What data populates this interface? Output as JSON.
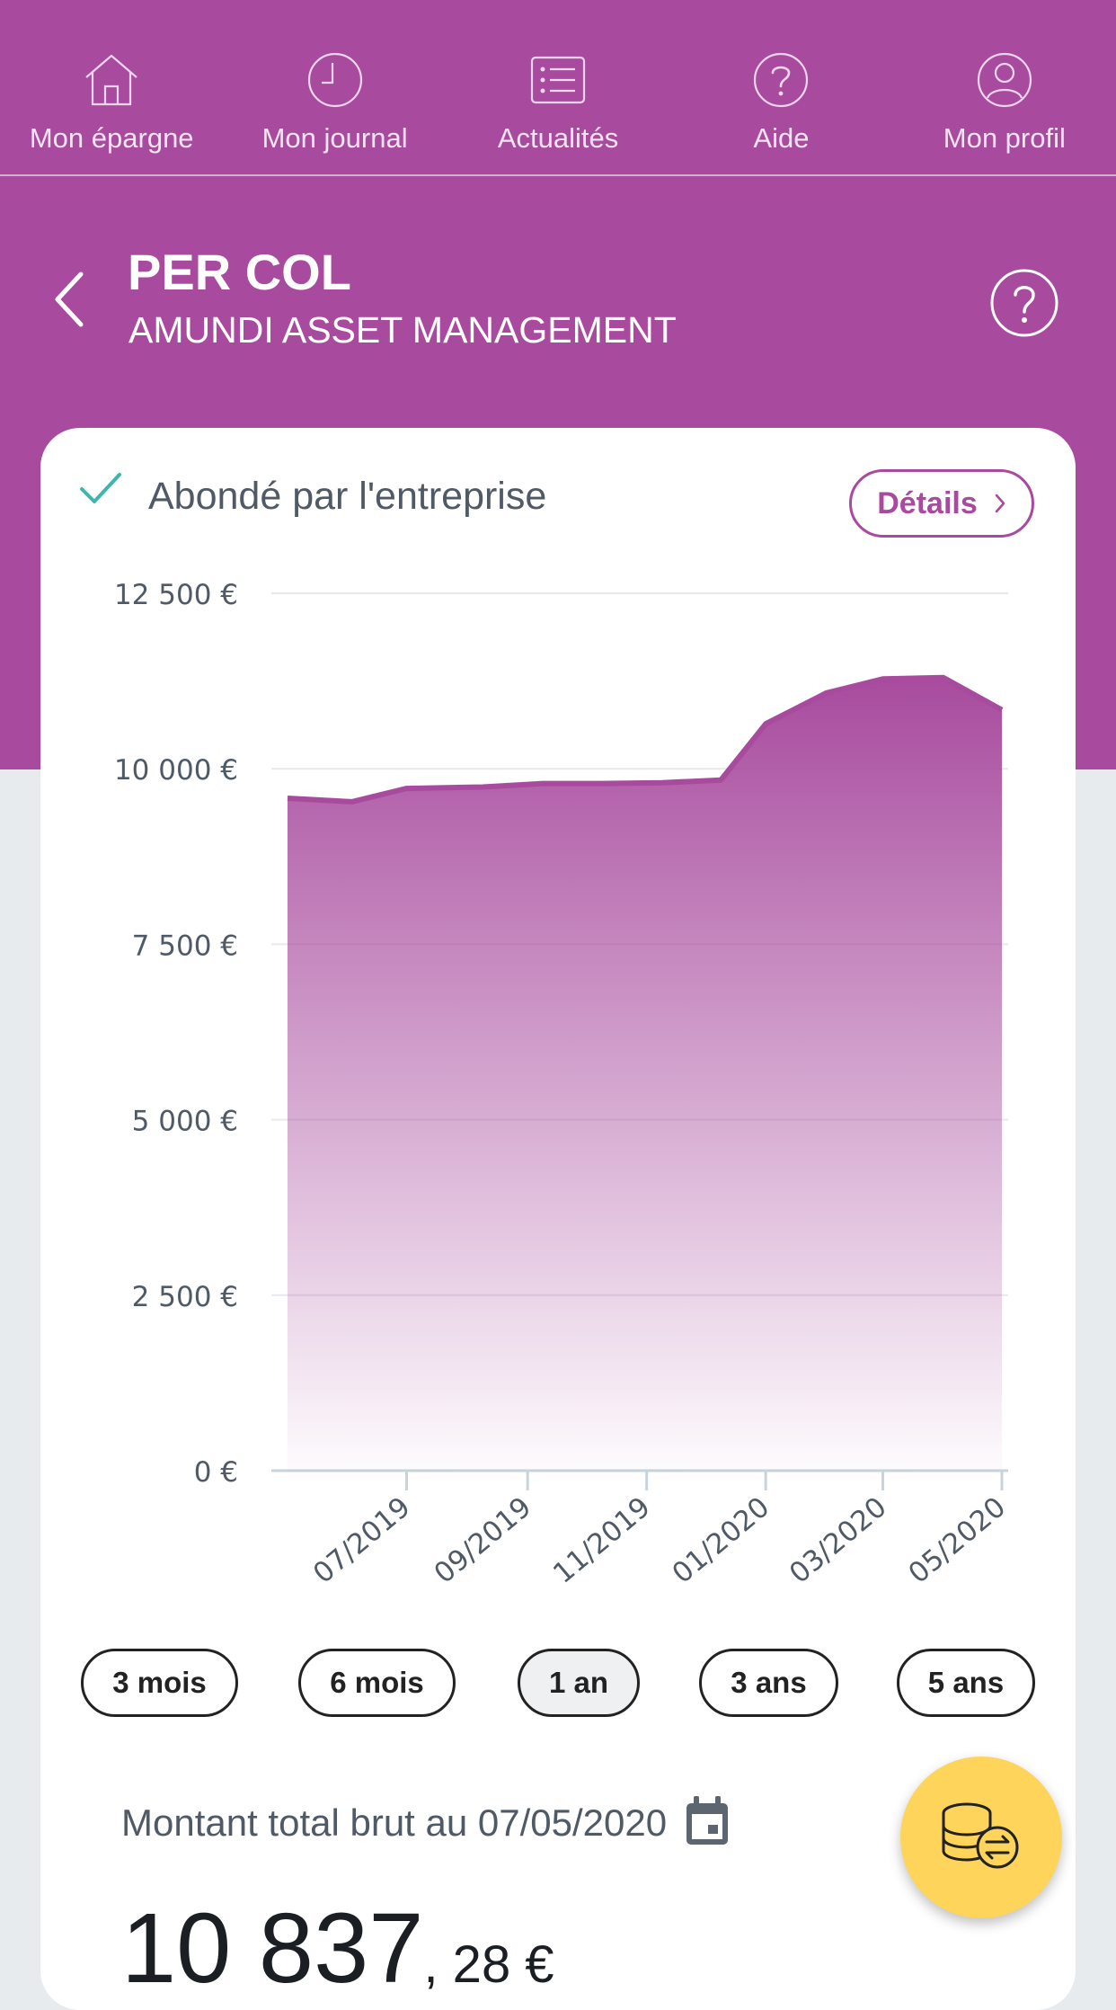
{
  "nav": {
    "items": [
      {
        "label": "Mon épargne",
        "icon": "home-icon"
      },
      {
        "label": "Mon journal",
        "icon": "clock-icon"
      },
      {
        "label": "Actualités",
        "icon": "news-list-icon"
      },
      {
        "label": "Aide",
        "icon": "help-icon"
      },
      {
        "label": "Mon profil",
        "icon": "user-icon"
      }
    ]
  },
  "header": {
    "title": "PER COL",
    "subtitle": "AMUNDI ASSET MANAGEMENT"
  },
  "card": {
    "abonde_label": "Abondé par l'entreprise",
    "details_label": "Détails"
  },
  "chart_data": {
    "type": "area",
    "title": "",
    "xlabel": "",
    "ylabel": "",
    "ylim": [
      0,
      12500
    ],
    "y_ticks": [
      "0 €",
      "2 500 €",
      "5 000 €",
      "7 500 €",
      "10 000 €",
      "12 500 €"
    ],
    "x_ticks": [
      "07/2019",
      "09/2019",
      "11/2019",
      "01/2020",
      "03/2020",
      "05/2020"
    ],
    "series": [
      {
        "values": [
          {
            "x": "2019-05-07",
            "y": 9580
          },
          {
            "x": "2019-06-09",
            "y": 9530
          },
          {
            "x": "2019-07-07",
            "y": 9720
          },
          {
            "x": "2019-08-15",
            "y": 9740
          },
          {
            "x": "2019-09-15",
            "y": 9790
          },
          {
            "x": "2019-10-15",
            "y": 9790
          },
          {
            "x": "2019-11-15",
            "y": 9800
          },
          {
            "x": "2019-12-15",
            "y": 9840
          },
          {
            "x": "2020-01-07",
            "y": 10640
          },
          {
            "x": "2020-02-07",
            "y": 11080
          },
          {
            "x": "2020-03-07",
            "y": 11280
          },
          {
            "x": "2020-04-07",
            "y": 11300
          },
          {
            "x": "2020-05-07",
            "y": 10837.28
          }
        ]
      }
    ],
    "grid": true,
    "color": "#a84b9e"
  },
  "periods": [
    {
      "label": "3 mois",
      "active": false
    },
    {
      "label": "6 mois",
      "active": false
    },
    {
      "label": "1 an",
      "active": true
    },
    {
      "label": "3 ans",
      "active": false
    },
    {
      "label": "5 ans",
      "active": false
    }
  ],
  "total": {
    "label": "Montant total brut au 07/05/2020",
    "amount_int": "10 837",
    "amount_dec": ", 28 €"
  },
  "colors": {
    "brand": "#a84b9e",
    "fab": "#fed45a",
    "check": "#3fb5b0"
  }
}
